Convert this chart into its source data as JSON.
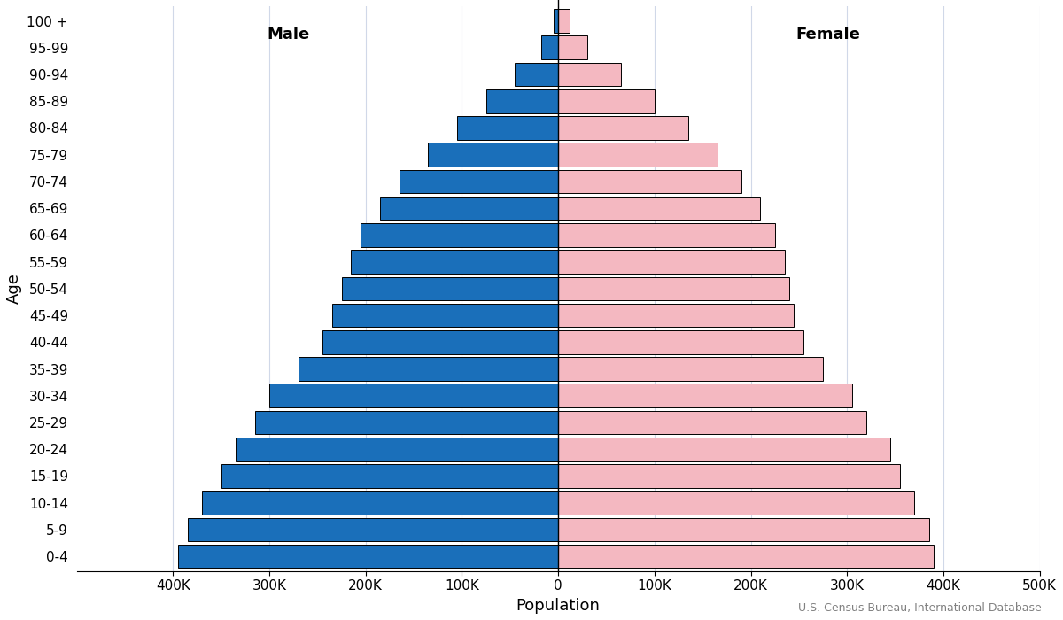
{
  "age_groups": [
    "0-4",
    "5-9",
    "10-14",
    "15-19",
    "20-24",
    "25-29",
    "30-34",
    "35-39",
    "40-44",
    "45-49",
    "50-54",
    "55-59",
    "60-64",
    "65-69",
    "70-74",
    "75-79",
    "80-84",
    "85-89",
    "90-94",
    "95-99",
    "100 +"
  ],
  "male": [
    395000,
    385000,
    370000,
    350000,
    335000,
    315000,
    300000,
    270000,
    245000,
    235000,
    225000,
    215000,
    205000,
    185000,
    165000,
    135000,
    105000,
    75000,
    45000,
    18000,
    5000
  ],
  "female": [
    390000,
    385000,
    370000,
    355000,
    345000,
    320000,
    305000,
    275000,
    255000,
    245000,
    240000,
    235000,
    225000,
    210000,
    190000,
    165000,
    135000,
    100000,
    65000,
    30000,
    12000
  ],
  "male_color": "#1a6fba",
  "female_color": "#f4b8c1",
  "bar_edge_color": "#000000",
  "bar_linewidth": 0.7,
  "xlabel": "Population",
  "ylabel": "Age",
  "xlim": [
    -500000,
    500000
  ],
  "xtick_values": [
    -400000,
    -300000,
    -200000,
    -100000,
    0,
    100000,
    200000,
    300000,
    400000,
    500000
  ],
  "xtick_labels": [
    "400K",
    "300K",
    "200K",
    "100K",
    "0",
    "100K",
    "200K",
    "300K",
    "400K",
    "500K"
  ],
  "male_label": "Male",
  "female_label": "Female",
  "source_text": "U.S. Census Bureau, International Database",
  "grid_color": "#d0d8e8",
  "background_color": "#ffffff",
  "vline_color": "#000000",
  "bar_height": 0.88
}
